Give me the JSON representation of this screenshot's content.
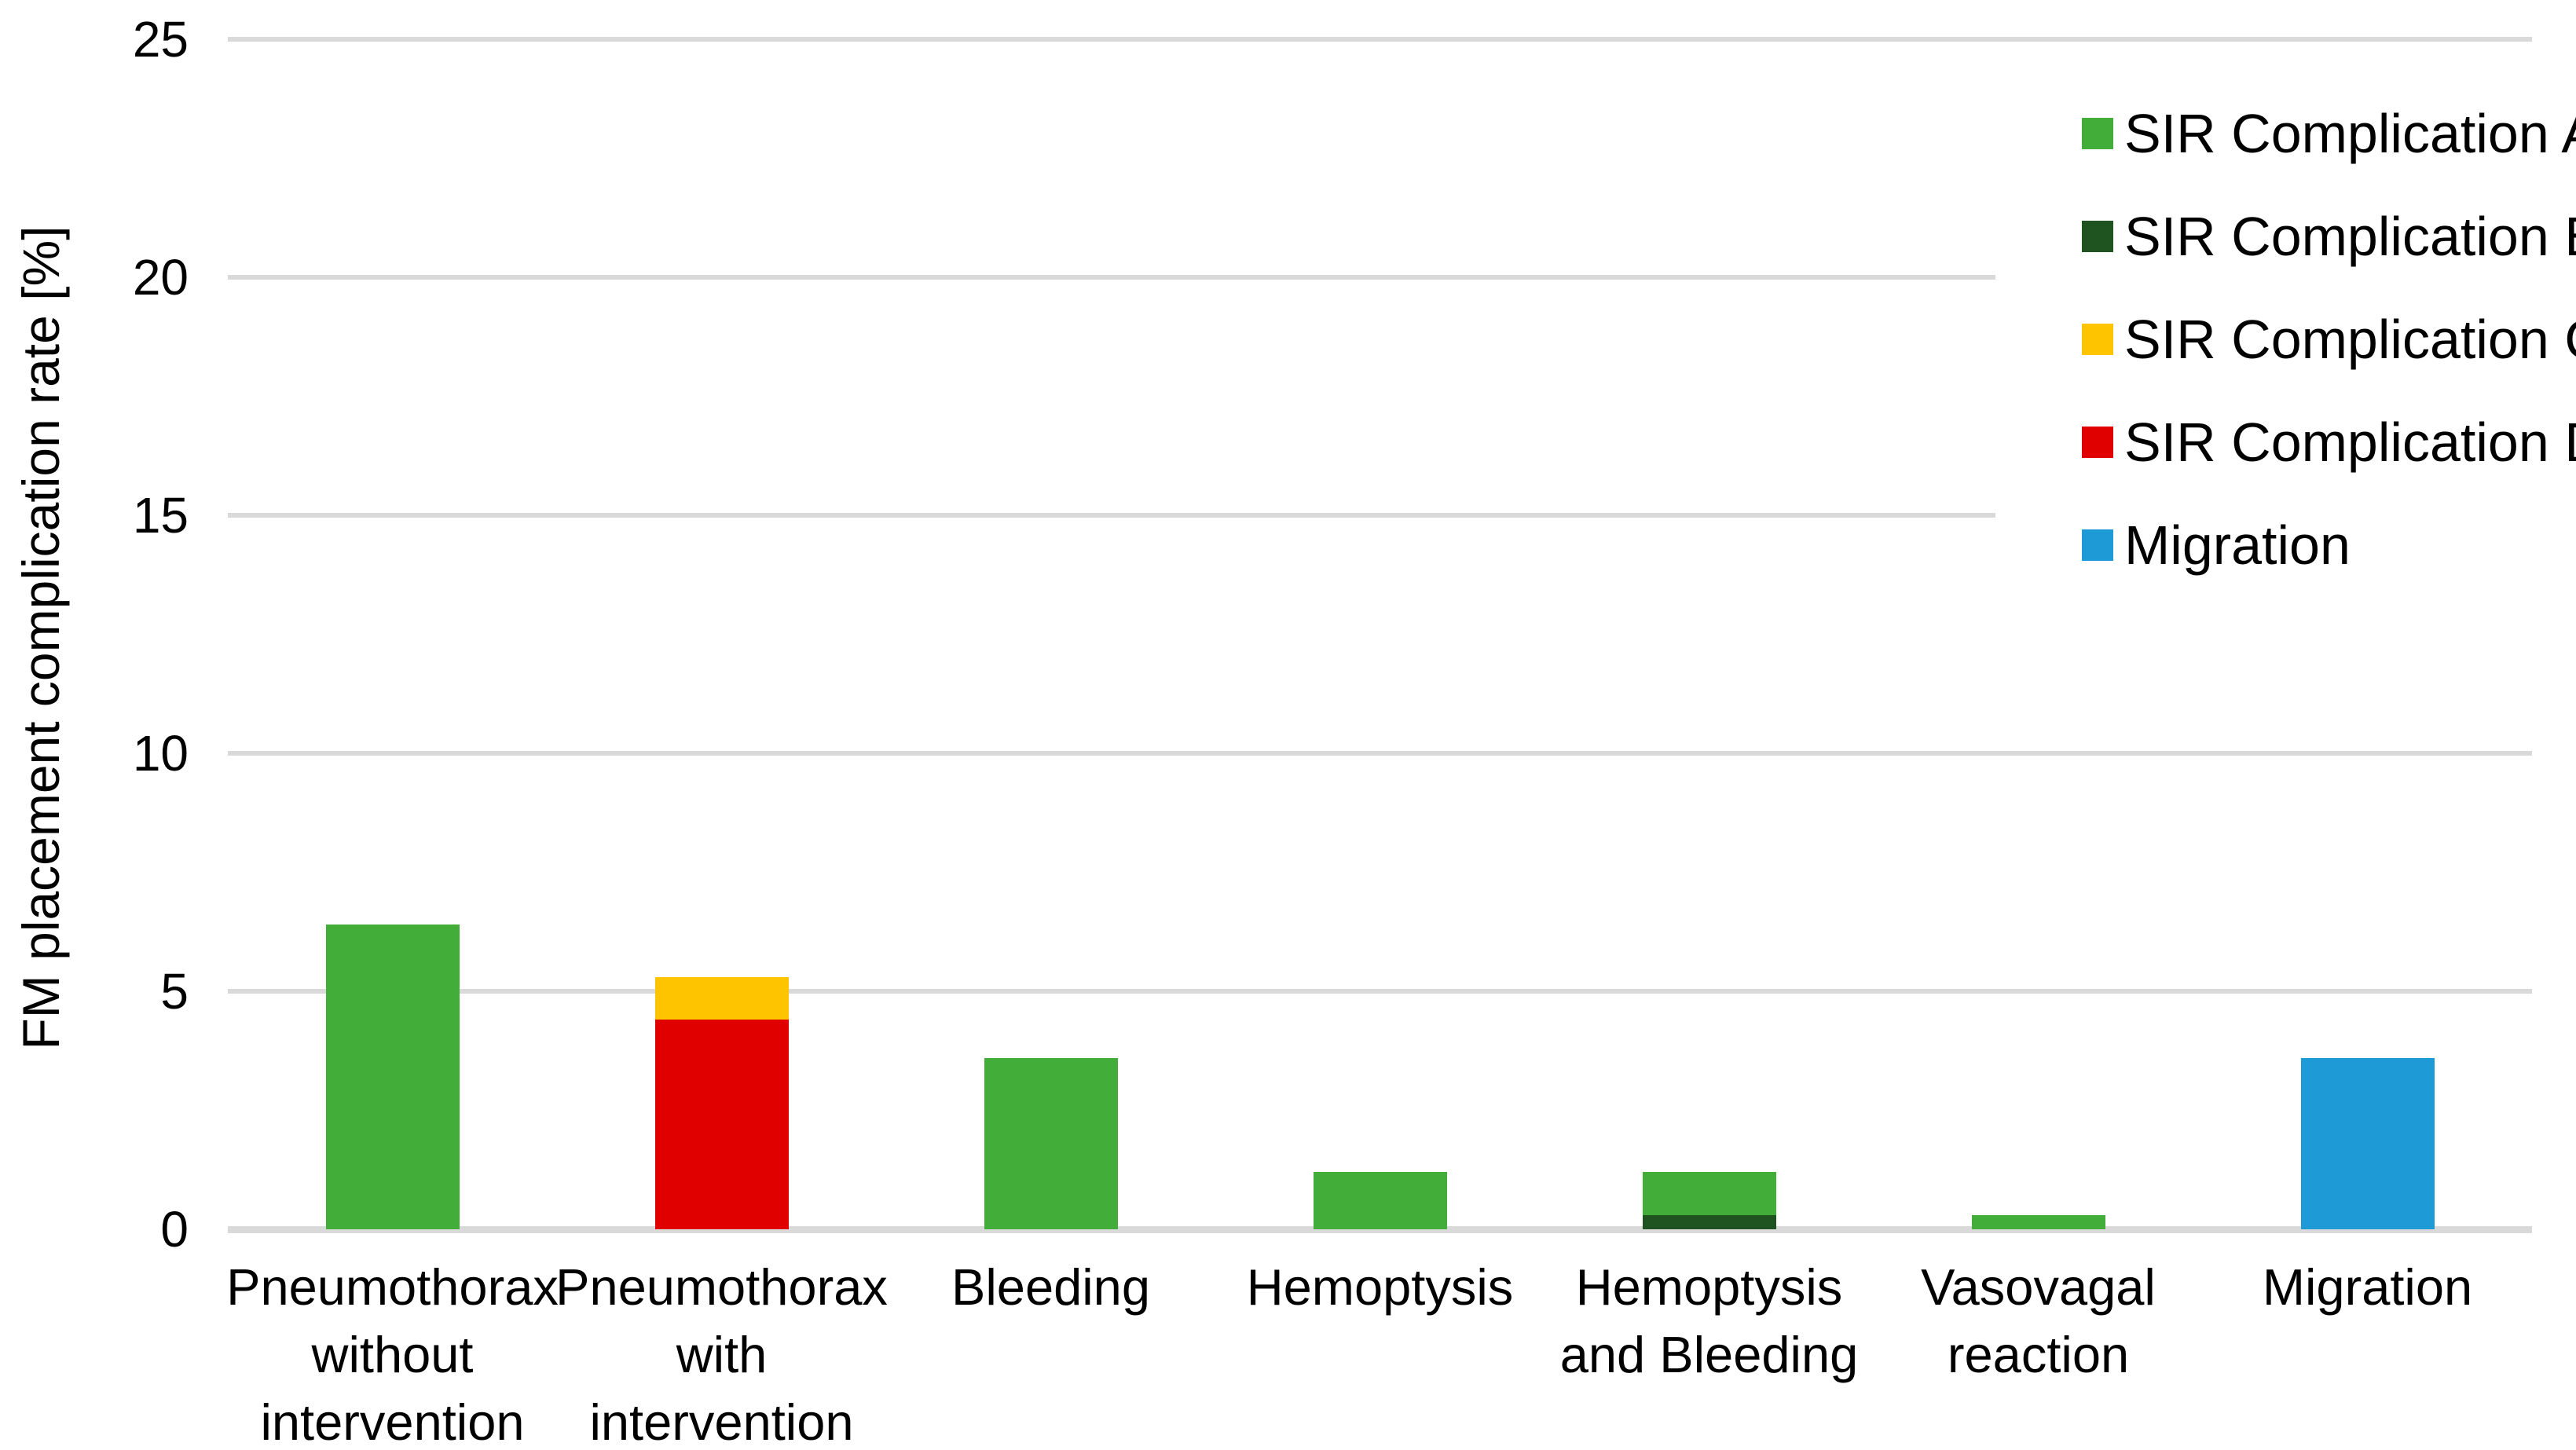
{
  "chart_data": {
    "type": "bar",
    "stacked": true,
    "title": "",
    "xlabel": "",
    "ylabel": "FM placement complication rate [%]",
    "ylim": [
      0,
      25
    ],
    "yticks": [
      0,
      5,
      10,
      15,
      20,
      25
    ],
    "grid": "horizontal",
    "legend_position": "top-right",
    "background_color": "#FFFFFF",
    "gridline_color": "#D9D9D9",
    "text_color": "#000000",
    "categories": [
      "Pneumothorax\nwithout\nintervention",
      "Pneumothorax\nwith\nintervention",
      "Bleeding",
      "Hemoptysis",
      "Hemoptysis\nand Bleeding",
      "Vasovagal\nreaction",
      "Migration"
    ],
    "series": [
      {
        "name": "SIR Complication A",
        "color": "#43AD3A",
        "values": [
          6.4,
          0,
          3.6,
          1.2,
          0.9,
          0.3,
          0
        ]
      },
      {
        "name": "SIR Complication B",
        "color": "#1F5420",
        "values": [
          0,
          0,
          0,
          0,
          0.3,
          0,
          0
        ]
      },
      {
        "name": "SIR Complication C",
        "color": "#FFC400",
        "values": [
          0,
          0.9,
          0,
          0,
          0,
          0,
          0
        ]
      },
      {
        "name": "SIR Complication D",
        "color": "#E00000",
        "values": [
          0,
          4.4,
          0,
          0,
          0,
          0,
          0
        ]
      },
      {
        "name": "Migration",
        "color": "#1E9AD6",
        "values": [
          0,
          0,
          0,
          0,
          0,
          0,
          3.6
        ]
      }
    ],
    "stack_order": [
      "SIR Complication B",
      "SIR Complication D",
      "SIR Complication C",
      "SIR Complication A",
      "Migration"
    ]
  }
}
